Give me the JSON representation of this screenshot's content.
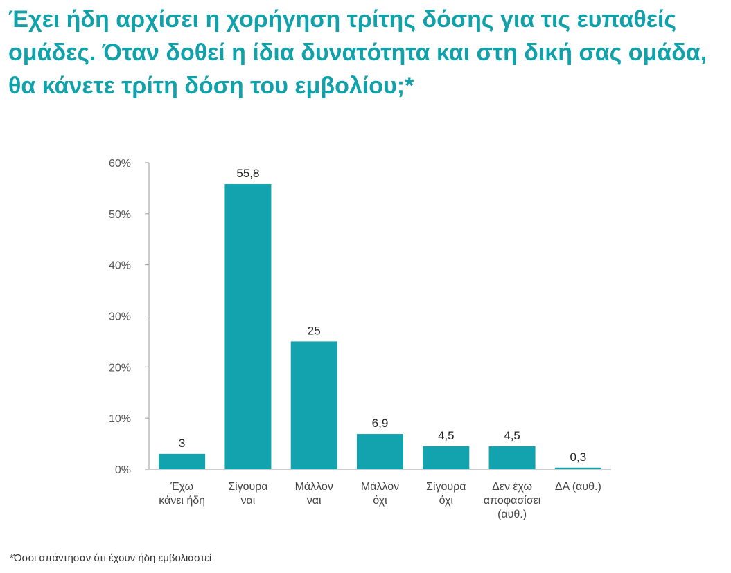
{
  "title": "Έχει ήδη αρχίσει η χορήγηση τρίτης δόσης για τις ευπαθείς ομάδες. Όταν δοθεί η ίδια δυνατότητα και στη δική σας ομάδα, θα κάνετε τρίτη δόση του εμβολίου;*",
  "footnote": "*Όσοι απάντησαν ότι έχουν ήδη εμβολιαστεί",
  "colors": {
    "bar": "#12a3ae",
    "title": "#10a1aa",
    "axis": "#9a9a9a"
  },
  "chart_data": {
    "type": "bar",
    "title": "Έχει ήδη αρχίσει η χορήγηση τρίτης δόσης για τις ευπαθείς ομάδες. Όταν δοθεί η ίδια δυνατότητα και στη δική σας ομάδα, θα κάνετε τρίτη δόση του εμβολίου;*",
    "xlabel": "",
    "ylabel": "",
    "categories": [
      [
        "Έχω",
        "κάνει ήδη"
      ],
      [
        "Σίγουρα",
        "ναι"
      ],
      [
        "Μάλλον",
        "ναι"
      ],
      [
        "Μάλλον",
        "όχι"
      ],
      [
        "Σίγουρα",
        "όχι"
      ],
      [
        "Δεν έχω",
        "αποφασίσει",
        "(αυθ.)"
      ],
      [
        "ΔΑ (αυθ.)"
      ]
    ],
    "values": [
      3,
      55.8,
      25,
      6.9,
      4.5,
      4.5,
      0.3
    ],
    "data_labels": [
      "3",
      "55,8",
      "25",
      "6,9",
      "4,5",
      "4,5",
      "0,3"
    ],
    "ylim": [
      0,
      60
    ],
    "yticks": [
      0,
      10,
      20,
      30,
      40,
      50,
      60
    ],
    "ytick_labels": [
      "0%",
      "10%",
      "20%",
      "30%",
      "40%",
      "50%",
      "60%"
    ],
    "grid": false,
    "legend": "none"
  }
}
